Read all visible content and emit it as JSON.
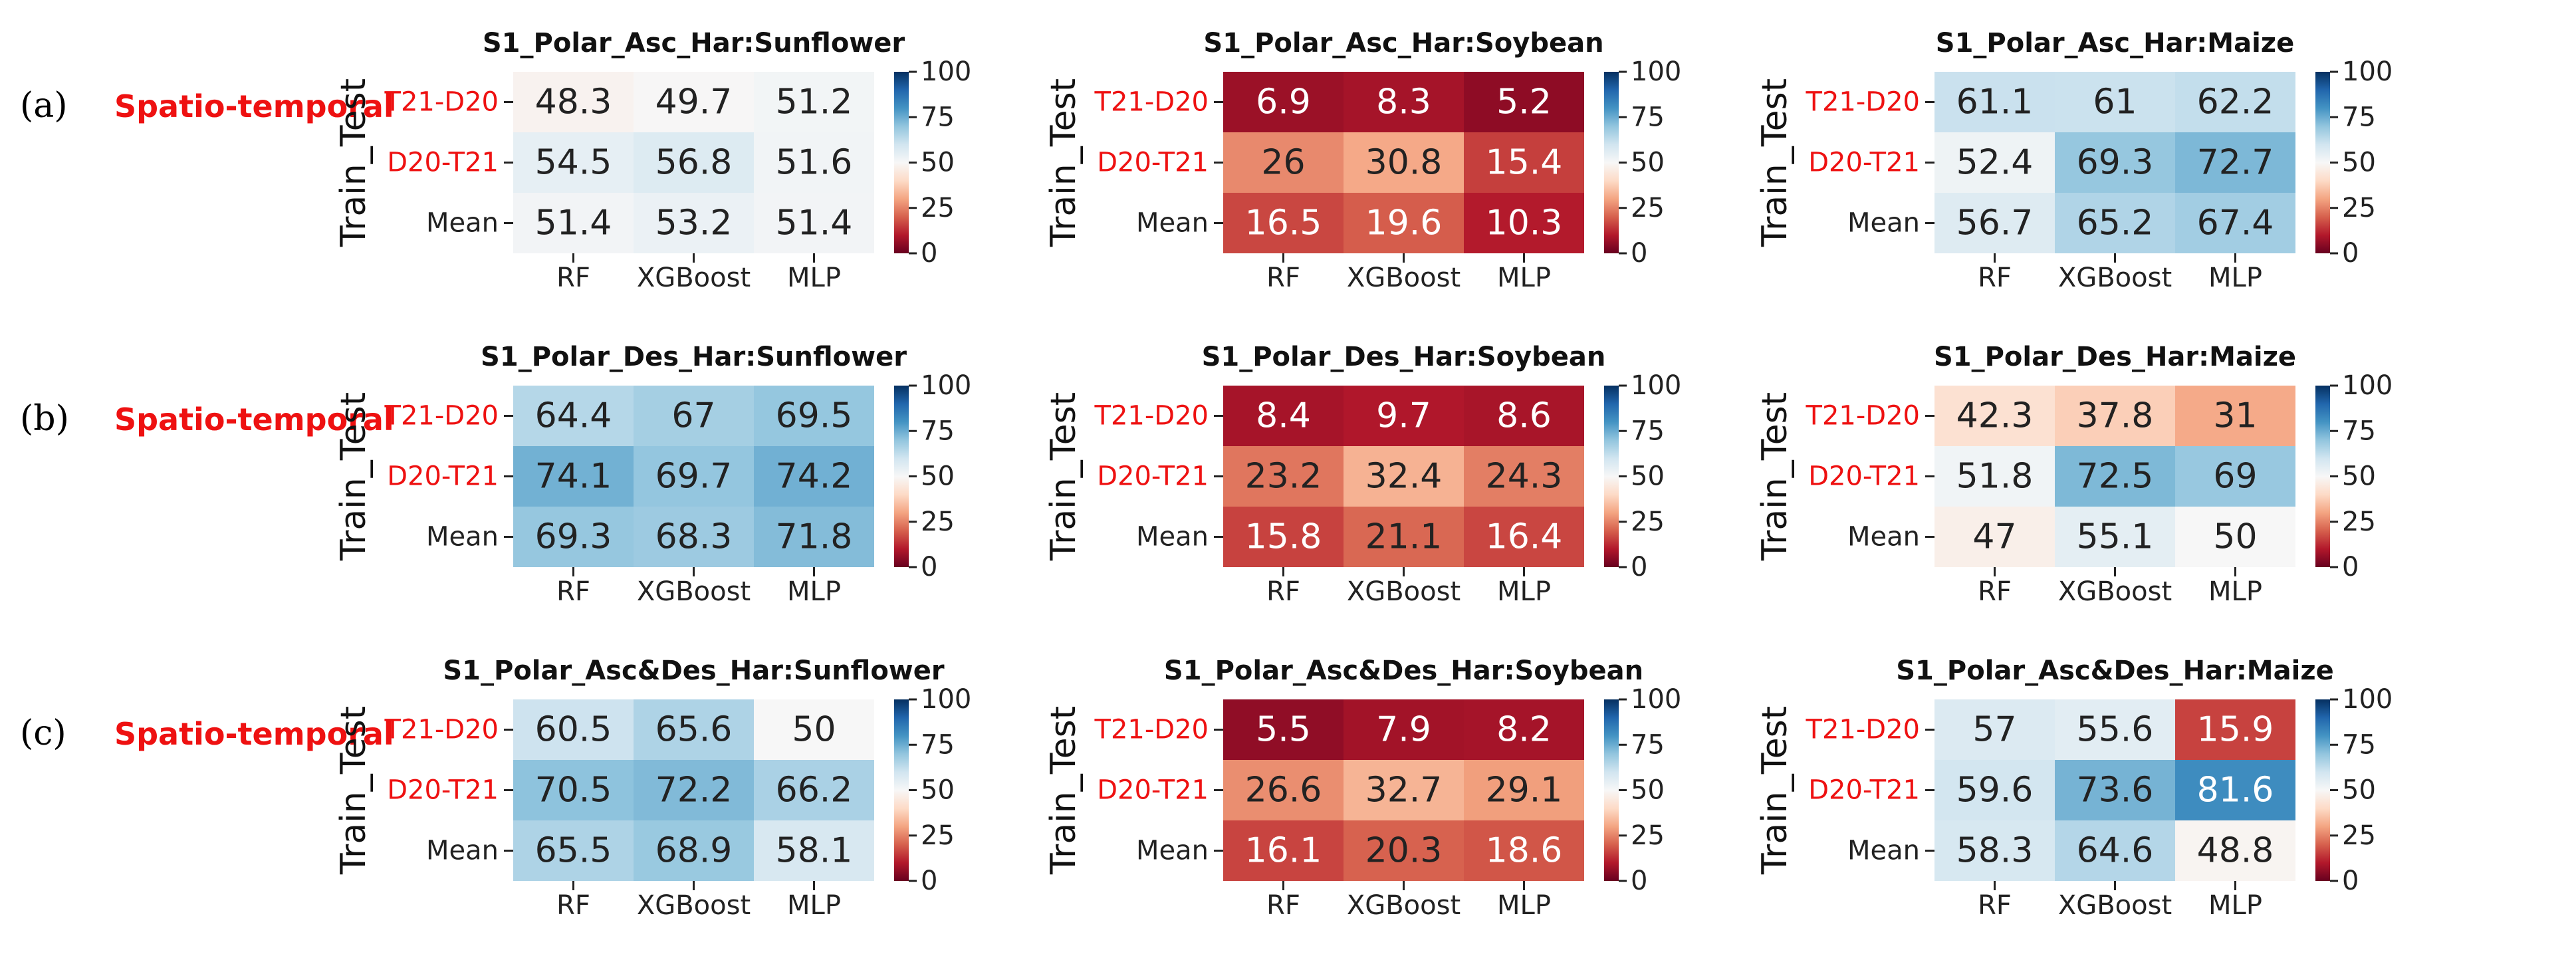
{
  "figure": {
    "scale": {
      "min": 0,
      "max": 100,
      "ticks": [
        0,
        25,
        50,
        75,
        100
      ]
    },
    "ylabel": "Train_Test",
    "columns": [
      "RF",
      "XGBoost",
      "MLP"
    ],
    "row_labels": [
      "T21-D20",
      "D20-T21",
      "Mean"
    ],
    "colors": {
      "highlight_text": "#ee1111",
      "low": "#67001f",
      "mid": "#f7f7f7",
      "high": "#053061"
    }
  },
  "rows": [
    {
      "letter": "(a)",
      "label": "Spatio-temporal"
    },
    {
      "letter": "(b)",
      "label": "Spatio-temporal"
    },
    {
      "letter": "(c)",
      "label": "Spatio-temporal"
    }
  ],
  "chart_data": [
    {
      "type": "heatmap",
      "title": "S1_Polar_Asc_Har:Sunflower",
      "ylabel": "Train_Test",
      "x": [
        "RF",
        "XGBoost",
        "MLP"
      ],
      "y": [
        "T21-D20",
        "D20-T21",
        "Mean"
      ],
      "values": [
        [
          48.3,
          49.7,
          51.2
        ],
        [
          54.5,
          56.8,
          51.6
        ],
        [
          51.4,
          53.2,
          51.4
        ]
      ],
      "colorbar_range": [
        0,
        100
      ]
    },
    {
      "type": "heatmap",
      "title": "S1_Polar_Asc_Har:Soybean",
      "ylabel": "Train_Test",
      "x": [
        "RF",
        "XGBoost",
        "MLP"
      ],
      "y": [
        "T21-D20",
        "D20-T21",
        "Mean"
      ],
      "values": [
        [
          6.9,
          8.3,
          5.2
        ],
        [
          26.0,
          30.8,
          15.4
        ],
        [
          16.5,
          19.6,
          10.3
        ]
      ],
      "colorbar_range": [
        0,
        100
      ]
    },
    {
      "type": "heatmap",
      "title": "S1_Polar_Asc_Har:Maize",
      "ylabel": "Train_Test",
      "x": [
        "RF",
        "XGBoost",
        "MLP"
      ],
      "y": [
        "T21-D20",
        "D20-T21",
        "Mean"
      ],
      "values": [
        [
          61.1,
          61.0,
          62.2
        ],
        [
          52.4,
          69.3,
          72.7
        ],
        [
          56.7,
          65.2,
          67.4
        ]
      ],
      "colorbar_range": [
        0,
        100
      ]
    },
    {
      "type": "heatmap",
      "title": "S1_Polar_Des_Har:Sunflower",
      "ylabel": "Train_Test",
      "x": [
        "RF",
        "XGBoost",
        "MLP"
      ],
      "y": [
        "T21-D20",
        "D20-T21",
        "Mean"
      ],
      "values": [
        [
          64.4,
          67.0,
          69.5
        ],
        [
          74.1,
          69.7,
          74.2
        ],
        [
          69.3,
          68.3,
          71.8
        ]
      ],
      "colorbar_range": [
        0,
        100
      ]
    },
    {
      "type": "heatmap",
      "title": "S1_Polar_Des_Har:Soybean",
      "ylabel": "Train_Test",
      "x": [
        "RF",
        "XGBoost",
        "MLP"
      ],
      "y": [
        "T21-D20",
        "D20-T21",
        "Mean"
      ],
      "values": [
        [
          8.4,
          9.7,
          8.6
        ],
        [
          23.2,
          32.4,
          24.3
        ],
        [
          15.8,
          21.1,
          16.4
        ]
      ],
      "colorbar_range": [
        0,
        100
      ]
    },
    {
      "type": "heatmap",
      "title": "S1_Polar_Des_Har:Maize",
      "ylabel": "Train_Test",
      "x": [
        "RF",
        "XGBoost",
        "MLP"
      ],
      "y": [
        "T21-D20",
        "D20-T21",
        "Mean"
      ],
      "values": [
        [
          42.3,
          37.8,
          31.0
        ],
        [
          51.8,
          72.5,
          69.0
        ],
        [
          47.0,
          55.1,
          50.0
        ]
      ],
      "colorbar_range": [
        0,
        100
      ]
    },
    {
      "type": "heatmap",
      "title": "S1_Polar_Asc&Des_Har:Sunflower",
      "ylabel": "Train_Test",
      "x": [
        "RF",
        "XGBoost",
        "MLP"
      ],
      "y": [
        "T21-D20",
        "D20-T21",
        "Mean"
      ],
      "values": [
        [
          60.5,
          65.6,
          50.0
        ],
        [
          70.5,
          72.2,
          66.2
        ],
        [
          65.5,
          68.9,
          58.1
        ]
      ],
      "colorbar_range": [
        0,
        100
      ]
    },
    {
      "type": "heatmap",
      "title": "S1_Polar_Asc&Des_Har:Soybean",
      "ylabel": "Train_Test",
      "x": [
        "RF",
        "XGBoost",
        "MLP"
      ],
      "y": [
        "T21-D20",
        "D20-T21",
        "Mean"
      ],
      "values": [
        [
          5.5,
          7.9,
          8.2
        ],
        [
          26.6,
          32.7,
          29.1
        ],
        [
          16.1,
          20.3,
          18.6
        ]
      ],
      "colorbar_range": [
        0,
        100
      ]
    },
    {
      "type": "heatmap",
      "title": "S1_Polar_Asc&Des_Har:Maize",
      "ylabel": "Train_Test",
      "x": [
        "RF",
        "XGBoost",
        "MLP"
      ],
      "y": [
        "T21-D20",
        "D20-T21",
        "Mean"
      ],
      "values": [
        [
          57.0,
          55.6,
          15.9
        ],
        [
          59.6,
          73.6,
          81.6
        ],
        [
          58.3,
          64.6,
          48.8
        ]
      ],
      "colorbar_range": [
        0,
        100
      ]
    }
  ]
}
